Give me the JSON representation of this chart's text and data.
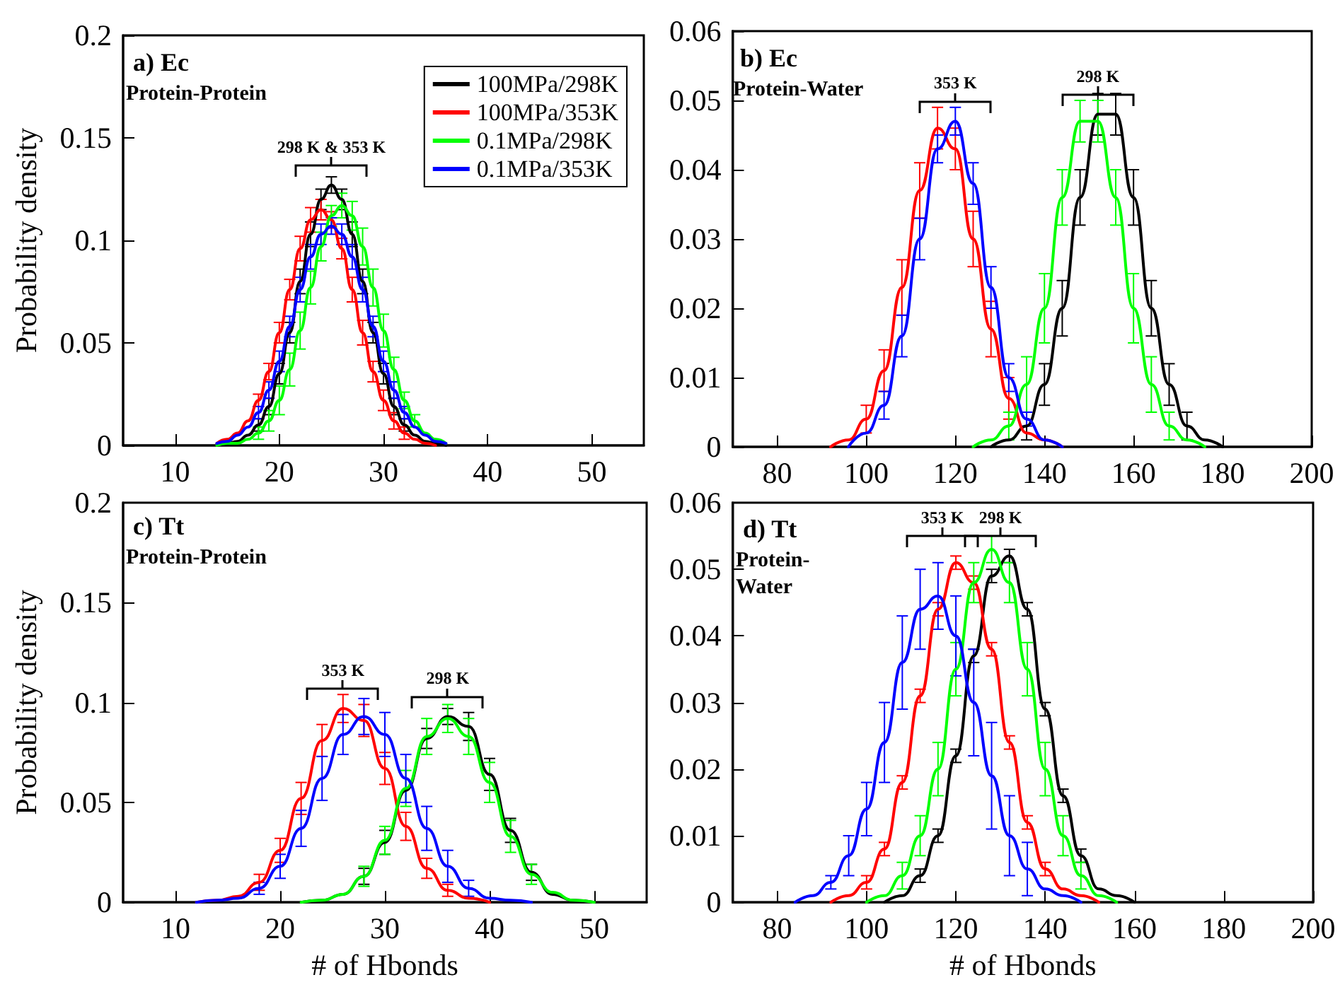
{
  "chart_data": [
    {
      "type": "line",
      "title": "a) Ec",
      "ylabel": "Probability density",
      "legend": "top right",
      "grid": false,
      "line_style": "solid",
      "xlim": [
        5,
        55
      ],
      "xticks": [
        10,
        20,
        30,
        40,
        50
      ],
      "ylim": [
        0,
        0.2
      ],
      "yticks": [
        0,
        0.05,
        0.1,
        0.15,
        0.2
      ],
      "annotations": [
        "Protein-Protein",
        {
          "text": "298 K & 353 K",
          "x": 25,
          "y": 0.127
        }
      ],
      "x": [
        14,
        15,
        16,
        17,
        18,
        19,
        20,
        21,
        22,
        23,
        24,
        25,
        26,
        27,
        28,
        29,
        30,
        31,
        32,
        33,
        34,
        35,
        36
      ],
      "series": [
        {
          "name": "100MPa/298K",
          "color": "#000000",
          "values": [
            0,
            0.001,
            0.002,
            0.005,
            0.01,
            0.019,
            0.035,
            0.055,
            0.08,
            0.103,
            0.12,
            0.127,
            0.12,
            0.103,
            0.08,
            0.055,
            0.035,
            0.019,
            0.01,
            0.005,
            0.002,
            0.001,
            0
          ],
          "errors": [
            null,
            null,
            null,
            null,
            0.003,
            0.004,
            0.005,
            0.005,
            0.006,
            0.006,
            0.005,
            0.004,
            0.005,
            0.006,
            0.006,
            0.005,
            0.005,
            0.004,
            0.003,
            null,
            null,
            null,
            null
          ]
        },
        {
          "name": "100MPa/353K",
          "color": "#ff0000",
          "values": [
            0.001,
            0.003,
            0.006,
            0.012,
            0.022,
            0.036,
            0.055,
            0.076,
            0.096,
            0.11,
            0.115,
            0.11,
            0.096,
            0.076,
            0.055,
            0.036,
            0.022,
            0.012,
            0.006,
            0.003,
            0.001,
            0,
            null
          ],
          "errors": [
            null,
            null,
            null,
            null,
            0.003,
            0.004,
            0.005,
            0.005,
            0.006,
            0.006,
            0.005,
            0.004,
            0.005,
            0.006,
            0.006,
            0.005,
            0.005,
            0.004,
            0.003,
            null,
            null,
            null,
            null
          ]
        },
        {
          "name": "0.1MPa/298K",
          "color": "#00ff00",
          "values": [
            0,
            0.001,
            0.001,
            0.003,
            0.006,
            0.012,
            0.022,
            0.037,
            0.056,
            0.077,
            0.097,
            0.112,
            0.117,
            0.112,
            0.097,
            0.077,
            0.056,
            0.037,
            0.022,
            0.012,
            0.006,
            0.003,
            0.001
          ],
          "errors": [
            null,
            null,
            null,
            null,
            0.003,
            0.005,
            0.007,
            0.008,
            0.009,
            0.008,
            0.007,
            0.005,
            0.006,
            0.007,
            0.009,
            0.009,
            0.008,
            0.006,
            0.004,
            0.003,
            null,
            null,
            null
          ]
        },
        {
          "name": "0.1MPa/353K",
          "color": "#0000ff",
          "values": [
            0.001,
            0.002,
            0.005,
            0.009,
            0.016,
            0.027,
            0.041,
            0.058,
            0.076,
            0.092,
            0.103,
            0.107,
            0.103,
            0.092,
            0.076,
            0.058,
            0.041,
            0.027,
            0.016,
            0.009,
            0.005,
            0.002,
            0.001
          ],
          "errors": [
            null,
            null,
            null,
            null,
            0.003,
            0.004,
            0.005,
            0.005,
            0.006,
            0.006,
            0.005,
            0.004,
            0.005,
            0.006,
            0.006,
            0.005,
            0.005,
            0.004,
            0.003,
            null,
            null,
            null,
            null
          ]
        }
      ]
    },
    {
      "type": "line",
      "title": "b) Ec",
      "grid": false,
      "line_style": "solid",
      "xlim": [
        70,
        200
      ],
      "xticks": [
        80,
        100,
        120,
        140,
        160,
        180,
        200
      ],
      "ylim": [
        0,
        0.06
      ],
      "yticks": [
        0,
        0.01,
        0.02,
        0.03,
        0.04,
        0.05,
        0.06
      ],
      "annotations": [
        "Protein-Water",
        {
          "text": "353 K",
          "x": 120,
          "y": 0.047
        },
        {
          "text": "298 K",
          "x": 152,
          "y": 0.048
        }
      ],
      "x": [
        92,
        96,
        100,
        104,
        108,
        112,
        116,
        120,
        124,
        128,
        132,
        136,
        140,
        144,
        148,
        152,
        156,
        160,
        164,
        168,
        172,
        176,
        180
      ],
      "series": [
        {
          "color": "#000000",
          "values": [
            null,
            null,
            null,
            null,
            null,
            null,
            null,
            null,
            null,
            0,
            0.001,
            0.003,
            0.009,
            0.02,
            0.036,
            0.048,
            0.048,
            0.036,
            0.02,
            0.009,
            0.003,
            0.001,
            0
          ],
          "errors": [
            null,
            null,
            null,
            null,
            null,
            null,
            null,
            null,
            null,
            null,
            null,
            0.002,
            0.003,
            0.004,
            0.004,
            0.003,
            0.003,
            0.004,
            0.004,
            0.003,
            0.002,
            null,
            null
          ]
        },
        {
          "color": "#ff0000",
          "values": [
            0,
            0.001,
            0.004,
            0.011,
            0.023,
            0.037,
            0.046,
            0.043,
            0.03,
            0.017,
            0.007,
            0.002,
            0.001,
            0,
            null,
            null,
            null,
            null,
            null,
            null,
            null,
            null,
            null
          ],
          "errors": [
            null,
            null,
            0.002,
            0.003,
            0.004,
            0.004,
            0.003,
            0.003,
            0.004,
            0.004,
            0.003,
            null,
            null,
            null,
            null,
            null,
            null,
            null,
            null,
            null,
            null,
            null,
            null
          ]
        },
        {
          "color": "#00ff00",
          "values": [
            null,
            null,
            null,
            null,
            null,
            null,
            null,
            null,
            0,
            0.001,
            0.003,
            0.009,
            0.02,
            0.036,
            0.047,
            0.047,
            0.036,
            0.02,
            0.009,
            0.003,
            0.001,
            0,
            null
          ],
          "errors": [
            null,
            null,
            null,
            null,
            null,
            null,
            null,
            null,
            null,
            null,
            0.002,
            0.004,
            0.005,
            0.004,
            0.003,
            0.003,
            0.004,
            0.005,
            0.004,
            0.002,
            null,
            null,
            null
          ]
        },
        {
          "color": "#0000ff",
          "values": [
            null,
            0,
            0.002,
            0.006,
            0.016,
            0.03,
            0.043,
            0.047,
            0.038,
            0.023,
            0.01,
            0.004,
            0.001,
            0,
            null,
            null,
            null,
            null,
            null,
            null,
            null,
            null,
            null
          ],
          "errors": [
            null,
            null,
            null,
            0.002,
            0.003,
            0.003,
            0.002,
            0.002,
            0.003,
            0.003,
            0.002,
            0.001,
            null,
            null,
            null,
            null,
            null,
            null,
            null,
            null,
            null,
            null,
            null
          ]
        }
      ]
    },
    {
      "type": "line",
      "title": "c) Tt",
      "xlabel": "# of Hbonds",
      "ylabel": "Probability density",
      "grid": false,
      "line_style": "solid",
      "xlim": [
        5,
        55
      ],
      "xticks": [
        10,
        20,
        30,
        40,
        50
      ],
      "ylim": [
        0,
        0.2
      ],
      "yticks": [
        0,
        0.05,
        0.1,
        0.15,
        0.2
      ],
      "annotations": [
        "Protein-Protein",
        {
          "text": "353 K",
          "x": 26,
          "y": 0.097
        },
        {
          "text": "298 K",
          "x": 36,
          "y": 0.093
        }
      ],
      "x": [
        12,
        14,
        16,
        18,
        20,
        22,
        24,
        26,
        28,
        30,
        32,
        34,
        36,
        38,
        40,
        42,
        44,
        46,
        48,
        50
      ],
      "series": [
        {
          "color": "#000000",
          "values": [
            null,
            null,
            null,
            null,
            null,
            0,
            0.001,
            0.004,
            0.013,
            0.03,
            0.056,
            0.082,
            0.093,
            0.088,
            0.064,
            0.036,
            0.015,
            0.004,
            0.001,
            0
          ],
          "errors": [
            null,
            null,
            null,
            null,
            null,
            null,
            null,
            null,
            0.004,
            0.006,
            null,
            0.005,
            0.004,
            0.007,
            0.008,
            0.006,
            0.004,
            null,
            null,
            null
          ]
        },
        {
          "color": "#ff0000",
          "values": [
            0,
            0.001,
            0.003,
            0.01,
            0.026,
            0.052,
            0.081,
            0.097,
            0.091,
            0.067,
            0.038,
            0.017,
            0.006,
            0.002,
            0,
            null,
            null,
            null,
            null,
            null
          ],
          "errors": [
            null,
            null,
            null,
            0.004,
            0.006,
            0.008,
            0.008,
            0.007,
            0.008,
            0.008,
            0.007,
            0.005,
            0.003,
            null,
            null,
            null,
            null,
            null,
            null,
            null
          ]
        },
        {
          "color": "#00ff00",
          "values": [
            null,
            null,
            null,
            null,
            null,
            0,
            0.001,
            0.004,
            0.013,
            0.031,
            0.057,
            0.083,
            0.092,
            0.083,
            0.06,
            0.033,
            0.014,
            0.005,
            0.001,
            0
          ],
          "errors": [
            null,
            null,
            null,
            null,
            null,
            null,
            null,
            null,
            0.005,
            0.007,
            0.009,
            0.009,
            0.007,
            0.009,
            0.01,
            0.008,
            0.005,
            null,
            null,
            null
          ]
        },
        {
          "color": "#0000ff",
          "values": [
            0,
            0.001,
            0.002,
            0.007,
            0.018,
            0.037,
            0.062,
            0.084,
            0.093,
            0.084,
            0.062,
            0.037,
            0.018,
            0.007,
            0.002,
            0.001,
            0,
            null,
            null,
            null
          ],
          "errors": [
            null,
            null,
            null,
            0.003,
            0.006,
            0.009,
            0.011,
            0.01,
            0.009,
            0.011,
            0.012,
            0.011,
            0.008,
            0.004,
            null,
            null,
            null,
            null,
            null,
            null
          ]
        }
      ]
    },
    {
      "type": "line",
      "title": "d) Tt",
      "xlabel": "# of Hbonds",
      "grid": false,
      "line_style": "solid",
      "xlim": [
        70,
        200
      ],
      "xticks": [
        80,
        100,
        120,
        140,
        160,
        180,
        200
      ],
      "ylim": [
        0,
        0.06
      ],
      "yticks": [
        0,
        0.01,
        0.02,
        0.03,
        0.04,
        0.05,
        0.06
      ],
      "annotations": [
        "Protein-\nWater",
        {
          "text": "353 K",
          "x": 117,
          "y": 0.052
        },
        {
          "text": "298 K",
          "x": 130,
          "y": 0.052
        }
      ],
      "x": [
        84,
        88,
        92,
        96,
        100,
        104,
        108,
        112,
        116,
        120,
        124,
        128,
        132,
        136,
        140,
        144,
        148,
        152,
        156,
        160
      ],
      "series": [
        {
          "color": "#000000",
          "values": [
            null,
            null,
            null,
            null,
            null,
            0,
            0.001,
            0.004,
            0.01,
            0.022,
            0.037,
            0.049,
            0.052,
            0.044,
            0.029,
            0.016,
            0.007,
            0.002,
            0.001,
            0
          ],
          "errors": [
            null,
            null,
            null,
            null,
            null,
            null,
            null,
            0.001,
            0.001,
            0.001,
            0.001,
            0.001,
            0.001,
            0.001,
            0.001,
            0.001,
            0.001,
            null,
            null,
            null
          ]
        },
        {
          "color": "#ff0000",
          "values": [
            null,
            null,
            0,
            0.001,
            0.003,
            0.008,
            0.018,
            0.031,
            0.044,
            0.051,
            0.048,
            0.038,
            0.024,
            0.012,
            0.005,
            0.002,
            0.001,
            0,
            null,
            null
          ],
          "errors": [
            null,
            null,
            null,
            null,
            0.001,
            0.001,
            0.001,
            0.001,
            0.001,
            0.001,
            0.001,
            0.001,
            0.001,
            0.001,
            0.001,
            null,
            null,
            null,
            null,
            null
          ]
        },
        {
          "color": "#00ff00",
          "values": [
            null,
            null,
            null,
            null,
            0,
            0.001,
            0.004,
            0.01,
            0.02,
            0.035,
            0.048,
            0.053,
            0.048,
            0.035,
            0.02,
            0.01,
            0.004,
            0.001,
            0,
            null
          ],
          "errors": [
            null,
            null,
            null,
            null,
            null,
            null,
            0.002,
            0.003,
            0.004,
            0.004,
            0.003,
            0.002,
            0.003,
            0.004,
            0.004,
            0.003,
            0.002,
            null,
            null,
            null
          ]
        },
        {
          "color": "#0000ff",
          "values": [
            0,
            0.001,
            0.003,
            0.007,
            0.014,
            0.024,
            0.036,
            0.044,
            0.046,
            0.04,
            0.03,
            0.019,
            0.01,
            0.005,
            0.002,
            0.001,
            0,
            null,
            null,
            null
          ],
          "errors": [
            null,
            null,
            0.001,
            0.003,
            0.004,
            0.006,
            0.007,
            0.006,
            0.005,
            0.006,
            0.008,
            0.008,
            0.006,
            0.004,
            null,
            null,
            null,
            null,
            null,
            null
          ]
        }
      ]
    }
  ]
}
